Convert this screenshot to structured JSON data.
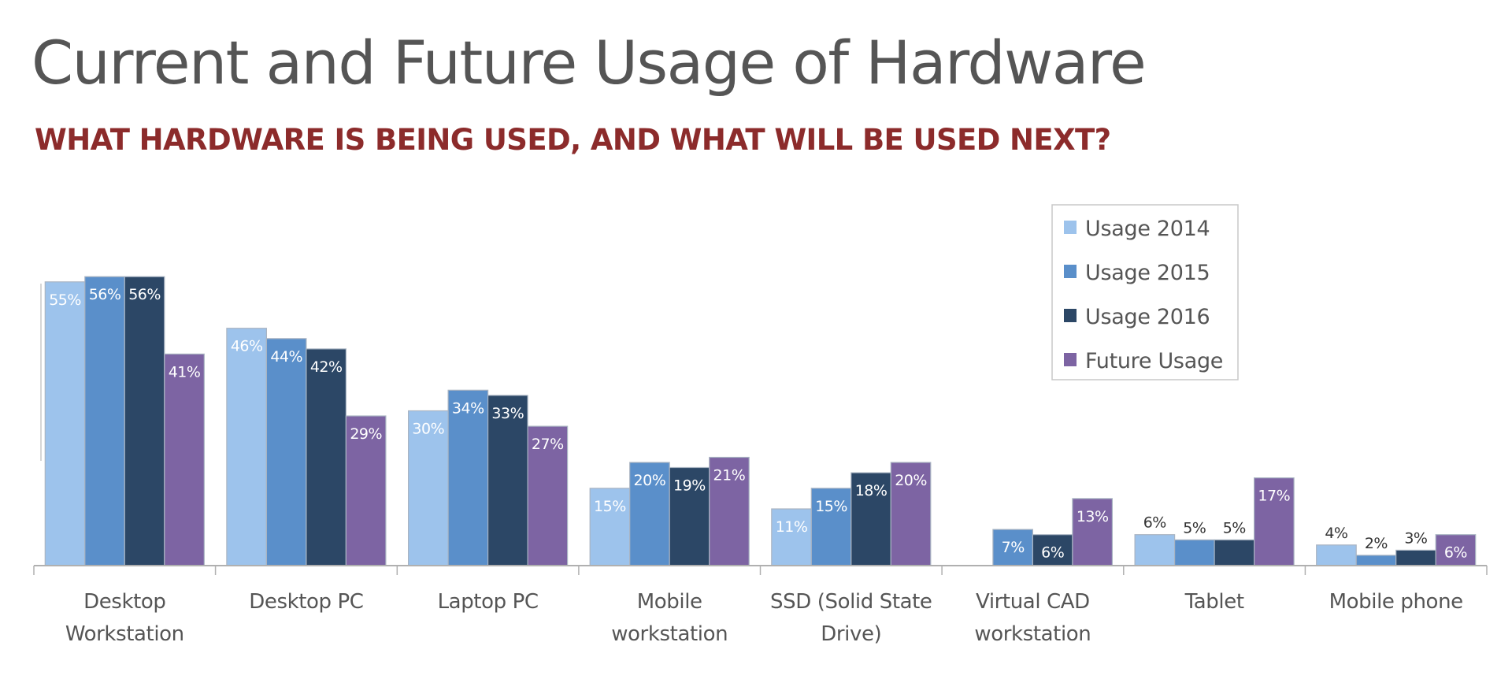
{
  "page": {
    "title": "Current and Future Usage of Hardware",
    "subtitle": "WHAT HARDWARE IS BEING USED, AND WHAT WILL BE USED NEXT?"
  },
  "colors": {
    "title": "#555555",
    "subtitle": "#8c2b2b",
    "axis": "#b0b0b0",
    "label_light": "#ffffff",
    "label_dark": "#333333"
  },
  "chart_data": {
    "type": "bar",
    "title": "Current and Future Usage of Hardware",
    "subtitle": "WHAT HARDWARE IS BEING USED, AND WHAT WILL BE USED NEXT?",
    "xlabel": "",
    "ylabel": "",
    "ylim": [
      0,
      56
    ],
    "grid": false,
    "legend": "top-right",
    "categories": [
      [
        "Desktop",
        "Workstation"
      ],
      [
        "Desktop PC"
      ],
      [
        "Laptop PC"
      ],
      [
        "Mobile",
        "workstation"
      ],
      [
        "SSD (Solid State",
        "Drive)"
      ],
      [
        "Virtual CAD",
        "workstation"
      ],
      [
        "Tablet"
      ],
      [
        "Mobile phone"
      ]
    ],
    "series": [
      {
        "name": "Usage 2014",
        "color": "#9dc3ec",
        "values": [
          55,
          46,
          30,
          15,
          11,
          null,
          6,
          4
        ],
        "labels": [
          "55%",
          "46%",
          "30%",
          "15%",
          "11%",
          null,
          "6%",
          "4%"
        ],
        "label_outside": [
          false,
          false,
          false,
          false,
          false,
          false,
          true,
          true
        ]
      },
      {
        "name": "Usage 2015",
        "color": "#5a8fca",
        "values": [
          56,
          44,
          34,
          20,
          15,
          7,
          5,
          2
        ],
        "labels": [
          "56%",
          "44%",
          "34%",
          "20%",
          "15%",
          "7%",
          "5%",
          "2%"
        ],
        "label_outside": [
          false,
          false,
          false,
          false,
          false,
          false,
          true,
          true
        ]
      },
      {
        "name": "Usage 2016",
        "color": "#2c4766",
        "values": [
          56,
          42,
          33,
          19,
          18,
          6,
          5,
          3
        ],
        "labels": [
          "56%",
          "42%",
          "33%",
          "19%",
          "18%",
          "6%",
          "5%",
          "3%"
        ],
        "label_outside": [
          false,
          false,
          false,
          false,
          false,
          false,
          true,
          true
        ]
      },
      {
        "name": "Future Usage",
        "color": "#7d64a3",
        "values": [
          41,
          29,
          27,
          21,
          20,
          13,
          17,
          6
        ],
        "labels": [
          "41%",
          "29%",
          "27%",
          "21%",
          "20%",
          "13%",
          "17%",
          "6%"
        ],
        "label_outside": [
          false,
          false,
          false,
          false,
          false,
          false,
          false,
          false
        ]
      }
    ]
  }
}
